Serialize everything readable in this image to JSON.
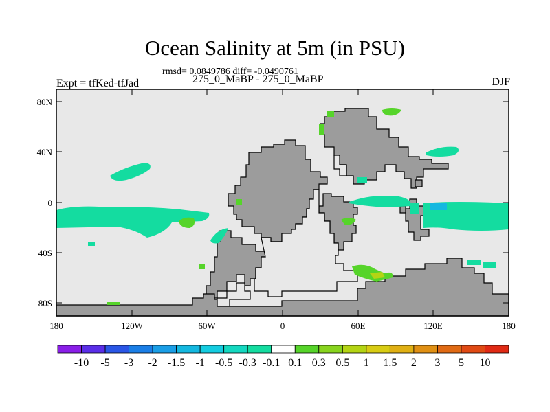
{
  "title": "Ocean Salinity at 5m (in PSU)",
  "stats": "rmsd= 0.0849786 diff= -0.0490761",
  "runs": "275_0_MaBP - 275_0_MaBP",
  "expt": "Expt = tfKed-tfJad",
  "season": "DJF",
  "map": {
    "lon_ticks": [
      "180",
      "120W",
      "60W",
      "0",
      "60E",
      "120E",
      "180"
    ],
    "lat_ticks": [
      "80N",
      "40N",
      "0",
      "40S",
      "80S"
    ],
    "ocean_color": "#e8e8e8",
    "land_color": "#9c9c9c"
  },
  "colorbar": {
    "labels": [
      "-10",
      "-5",
      "-3",
      "-2",
      "-1.5",
      "-1",
      "-0.5",
      "-0.3",
      "-0.1",
      "0.1",
      "0.3",
      "0.5",
      "1",
      "1.5",
      "2",
      "3",
      "5",
      "10"
    ],
    "colors": [
      "#8a1ee8",
      "#5a2ee8",
      "#2a56e6",
      "#1a7ee6",
      "#1a9ee6",
      "#14b8e0",
      "#14cce0",
      "#14d8c0",
      "#14dca0",
      "#ffffff",
      "#56d42a",
      "#88d41e",
      "#b4d414",
      "#d8cc14",
      "#e0b014",
      "#e09014",
      "#e06a14",
      "#e04a14",
      "#e02a14"
    ]
  }
}
